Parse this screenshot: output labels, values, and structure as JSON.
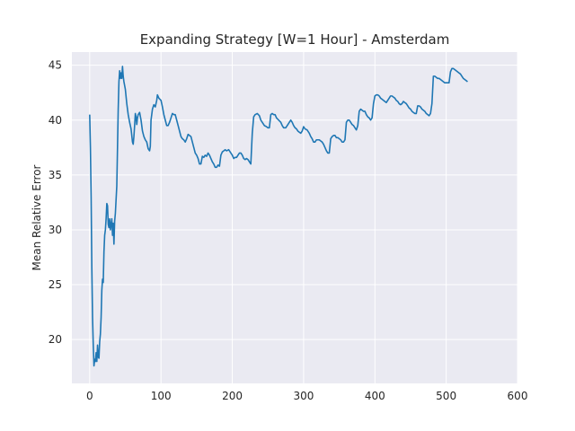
{
  "chart_data": {
    "type": "line",
    "title": "Expanding Strategy [W=1 Hour] - Amsterdam",
    "xlabel": "",
    "ylabel": "Mean Relative Error",
    "xlim": [
      -25,
      600
    ],
    "ylim": [
      16.0,
      46.2
    ],
    "xticks": [
      0,
      100,
      200,
      300,
      400,
      500,
      600
    ],
    "yticks": [
      20,
      25,
      30,
      35,
      40,
      45
    ],
    "grid": true,
    "background": "#eaeaf2",
    "gridColor": "#ffffff",
    "series": [
      {
        "color": "#1f77b4",
        "points": [
          [
            0,
            40.5
          ],
          [
            1,
            37.5
          ],
          [
            2,
            33.0
          ],
          [
            3,
            26.5
          ],
          [
            4,
            22.0
          ],
          [
            5,
            19.5
          ],
          [
            6,
            17.6
          ],
          [
            7,
            18.2
          ],
          [
            8,
            18.0
          ],
          [
            9,
            18.8
          ],
          [
            10,
            18.0
          ],
          [
            11,
            19.5
          ],
          [
            12,
            18.4
          ],
          [
            13,
            18.3
          ],
          [
            14,
            19.8
          ],
          [
            15,
            20.5
          ],
          [
            16,
            22.0
          ],
          [
            17,
            24.5
          ],
          [
            18,
            25.5
          ],
          [
            19,
            25.2
          ],
          [
            20,
            28.0
          ],
          [
            21,
            29.5
          ],
          [
            22,
            30.0
          ],
          [
            23,
            31.0
          ],
          [
            24,
            32.4
          ],
          [
            25,
            32.2
          ],
          [
            26,
            30.5
          ],
          [
            27,
            30.2
          ],
          [
            28,
            31.0
          ],
          [
            29,
            30.0
          ],
          [
            30,
            30.5
          ],
          [
            31,
            31.0
          ],
          [
            32,
            29.5
          ],
          [
            33,
            30.6
          ],
          [
            34,
            28.7
          ],
          [
            35,
            30.8
          ],
          [
            36,
            31.5
          ],
          [
            38,
            34.0
          ],
          [
            40,
            41.0
          ],
          [
            41,
            43.5
          ],
          [
            42,
            44.5
          ],
          [
            43,
            43.8
          ],
          [
            44,
            44.3
          ],
          [
            45,
            43.8
          ],
          [
            46,
            44.9
          ],
          [
            47,
            44.0
          ],
          [
            48,
            43.5
          ],
          [
            50,
            42.8
          ],
          [
            52,
            41.5
          ],
          [
            54,
            40.5
          ],
          [
            56,
            39.8
          ],
          [
            58,
            39.2
          ],
          [
            60,
            38.0
          ],
          [
            61,
            37.8
          ],
          [
            62,
            38.5
          ],
          [
            63,
            39.5
          ],
          [
            64,
            40.6
          ],
          [
            65,
            40.3
          ],
          [
            66,
            39.6
          ],
          [
            67,
            40.2
          ],
          [
            68,
            40.5
          ],
          [
            70,
            40.7
          ],
          [
            72,
            40.0
          ],
          [
            74,
            39.0
          ],
          [
            76,
            38.5
          ],
          [
            78,
            38.2
          ],
          [
            80,
            38.0
          ],
          [
            82,
            37.4
          ],
          [
            84,
            37.2
          ],
          [
            85,
            37.6
          ],
          [
            86,
            40.0
          ],
          [
            88,
            41.0
          ],
          [
            90,
            41.4
          ],
          [
            92,
            41.2
          ],
          [
            94,
            41.8
          ],
          [
            95,
            42.3
          ],
          [
            97,
            42.0
          ],
          [
            100,
            41.8
          ],
          [
            102,
            41.2
          ],
          [
            104,
            40.5
          ],
          [
            106,
            40.0
          ],
          [
            108,
            39.5
          ],
          [
            110,
            39.5
          ],
          [
            112,
            39.8
          ],
          [
            114,
            40.2
          ],
          [
            116,
            40.6
          ],
          [
            118,
            40.5
          ],
          [
            120,
            40.5
          ],
          [
            122,
            40.0
          ],
          [
            124,
            39.5
          ],
          [
            126,
            39.0
          ],
          [
            128,
            38.5
          ],
          [
            130,
            38.3
          ],
          [
            132,
            38.2
          ],
          [
            134,
            38.0
          ],
          [
            136,
            38.3
          ],
          [
            138,
            38.7
          ],
          [
            140,
            38.6
          ],
          [
            142,
            38.5
          ],
          [
            144,
            38.0
          ],
          [
            146,
            37.5
          ],
          [
            148,
            37.0
          ],
          [
            150,
            36.8
          ],
          [
            152,
            36.5
          ],
          [
            154,
            36.0
          ],
          [
            156,
            36.0
          ],
          [
            158,
            36.7
          ],
          [
            160,
            36.6
          ],
          [
            162,
            36.8
          ],
          [
            164,
            36.7
          ],
          [
            166,
            37.0
          ],
          [
            168,
            36.8
          ],
          [
            170,
            36.5
          ],
          [
            172,
            36.2
          ],
          [
            174,
            36.0
          ],
          [
            176,
            35.7
          ],
          [
            178,
            35.7
          ],
          [
            180,
            35.9
          ],
          [
            182,
            35.8
          ],
          [
            184,
            36.8
          ],
          [
            186,
            37.1
          ],
          [
            188,
            37.2
          ],
          [
            190,
            37.3
          ],
          [
            192,
            37.2
          ],
          [
            195,
            37.3
          ],
          [
            198,
            37.0
          ],
          [
            200,
            36.8
          ],
          [
            202,
            36.5
          ],
          [
            204,
            36.6
          ],
          [
            206,
            36.6
          ],
          [
            208,
            36.8
          ],
          [
            210,
            37.0
          ],
          [
            212,
            37.0
          ],
          [
            214,
            36.8
          ],
          [
            216,
            36.5
          ],
          [
            218,
            36.4
          ],
          [
            220,
            36.5
          ],
          [
            222,
            36.4
          ],
          [
            224,
            36.2
          ],
          [
            226,
            36.0
          ],
          [
            228,
            38.8
          ],
          [
            230,
            40.3
          ],
          [
            232,
            40.5
          ],
          [
            235,
            40.6
          ],
          [
            238,
            40.4
          ],
          [
            240,
            40.0
          ],
          [
            242,
            39.8
          ],
          [
            245,
            39.5
          ],
          [
            248,
            39.4
          ],
          [
            250,
            39.3
          ],
          [
            252,
            39.3
          ],
          [
            254,
            40.5
          ],
          [
            256,
            40.6
          ],
          [
            258,
            40.5
          ],
          [
            260,
            40.5
          ],
          [
            262,
            40.2
          ],
          [
            265,
            40.0
          ],
          [
            268,
            39.8
          ],
          [
            270,
            39.5
          ],
          [
            272,
            39.3
          ],
          [
            275,
            39.3
          ],
          [
            278,
            39.6
          ],
          [
            280,
            39.8
          ],
          [
            282,
            40.0
          ],
          [
            284,
            39.8
          ],
          [
            286,
            39.5
          ],
          [
            288,
            39.3
          ],
          [
            290,
            39.2
          ],
          [
            292,
            39.0
          ],
          [
            294,
            38.9
          ],
          [
            296,
            38.8
          ],
          [
            298,
            39.0
          ],
          [
            300,
            39.4
          ],
          [
            302,
            39.2
          ],
          [
            305,
            39.1
          ],
          [
            308,
            38.8
          ],
          [
            310,
            38.5
          ],
          [
            312,
            38.3
          ],
          [
            314,
            38.0
          ],
          [
            316,
            38.0
          ],
          [
            318,
            38.2
          ],
          [
            320,
            38.2
          ],
          [
            322,
            38.2
          ],
          [
            324,
            38.1
          ],
          [
            326,
            38.0
          ],
          [
            328,
            37.8
          ],
          [
            330,
            37.5
          ],
          [
            332,
            37.2
          ],
          [
            334,
            37.0
          ],
          [
            336,
            37.0
          ],
          [
            338,
            38.3
          ],
          [
            340,
            38.5
          ],
          [
            342,
            38.6
          ],
          [
            344,
            38.6
          ],
          [
            346,
            38.4
          ],
          [
            348,
            38.4
          ],
          [
            350,
            38.3
          ],
          [
            352,
            38.2
          ],
          [
            354,
            38.0
          ],
          [
            356,
            38.0
          ],
          [
            358,
            38.2
          ],
          [
            360,
            39.8
          ],
          [
            362,
            40.0
          ],
          [
            364,
            40.0
          ],
          [
            366,
            39.8
          ],
          [
            368,
            39.6
          ],
          [
            370,
            39.5
          ],
          [
            372,
            39.3
          ],
          [
            374,
            39.1
          ],
          [
            376,
            39.5
          ],
          [
            378,
            40.8
          ],
          [
            380,
            41.0
          ],
          [
            382,
            40.9
          ],
          [
            384,
            40.8
          ],
          [
            386,
            40.8
          ],
          [
            388,
            40.5
          ],
          [
            390,
            40.3
          ],
          [
            392,
            40.2
          ],
          [
            394,
            40.0
          ],
          [
            396,
            40.2
          ],
          [
            398,
            41.5
          ],
          [
            400,
            42.2
          ],
          [
            402,
            42.3
          ],
          [
            404,
            42.3
          ],
          [
            406,
            42.2
          ],
          [
            408,
            42.0
          ],
          [
            410,
            41.9
          ],
          [
            412,
            41.8
          ],
          [
            414,
            41.7
          ],
          [
            416,
            41.6
          ],
          [
            418,
            41.8
          ],
          [
            420,
            42.0
          ],
          [
            422,
            42.2
          ],
          [
            424,
            42.2
          ],
          [
            426,
            42.1
          ],
          [
            428,
            42.0
          ],
          [
            430,
            41.8
          ],
          [
            432,
            41.7
          ],
          [
            434,
            41.5
          ],
          [
            436,
            41.4
          ],
          [
            438,
            41.5
          ],
          [
            440,
            41.7
          ],
          [
            442,
            41.6
          ],
          [
            444,
            41.5
          ],
          [
            446,
            41.3
          ],
          [
            448,
            41.1
          ],
          [
            450,
            41.0
          ],
          [
            452,
            40.8
          ],
          [
            454,
            40.7
          ],
          [
            456,
            40.6
          ],
          [
            458,
            40.6
          ],
          [
            460,
            41.3
          ],
          [
            462,
            41.3
          ],
          [
            464,
            41.2
          ],
          [
            466,
            41.0
          ],
          [
            468,
            40.9
          ],
          [
            470,
            40.8
          ],
          [
            472,
            40.6
          ],
          [
            474,
            40.5
          ],
          [
            476,
            40.4
          ],
          [
            478,
            40.6
          ],
          [
            480,
            41.5
          ],
          [
            482,
            44.0
          ],
          [
            484,
            44.0
          ],
          [
            486,
            43.9
          ],
          [
            488,
            43.8
          ],
          [
            490,
            43.8
          ],
          [
            492,
            43.7
          ],
          [
            494,
            43.6
          ],
          [
            496,
            43.5
          ],
          [
            498,
            43.4
          ],
          [
            500,
            43.4
          ],
          [
            502,
            43.4
          ],
          [
            504,
            43.4
          ],
          [
            506,
            44.4
          ],
          [
            508,
            44.7
          ],
          [
            510,
            44.7
          ],
          [
            512,
            44.6
          ],
          [
            514,
            44.5
          ],
          [
            516,
            44.4
          ],
          [
            518,
            44.3
          ],
          [
            520,
            44.2
          ],
          [
            522,
            44.0
          ],
          [
            524,
            43.8
          ],
          [
            526,
            43.7
          ],
          [
            528,
            43.6
          ],
          [
            530,
            43.5
          ]
        ]
      }
    ]
  }
}
